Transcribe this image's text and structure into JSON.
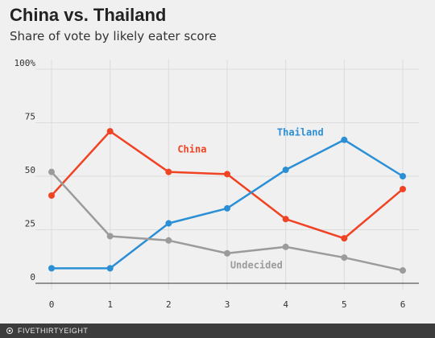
{
  "chart_data": {
    "type": "line",
    "title": "China vs. Thailand",
    "subtitle": "Share of vote by likely eater score",
    "xlabel": "",
    "ylabel": "",
    "x": [
      0,
      1,
      2,
      3,
      4,
      5,
      6
    ],
    "xlim": [
      0,
      6
    ],
    "ylim": [
      0,
      100
    ],
    "y_ticks": [
      0,
      25,
      50,
      75,
      100
    ],
    "y_tick_labels": [
      "0",
      "25",
      "50",
      "75",
      "100%"
    ],
    "grid": true,
    "series": [
      {
        "name": "China",
        "color": "#f04323",
        "values": [
          41,
          71,
          52,
          51,
          30,
          21,
          44
        ]
      },
      {
        "name": "Thailand",
        "color": "#2b8fd6",
        "values": [
          7,
          7,
          28,
          35,
          53,
          67,
          50
        ]
      },
      {
        "name": "Undecided",
        "color": "#9b9b9b",
        "values": [
          52,
          22,
          20,
          14,
          17,
          12,
          6
        ]
      }
    ]
  },
  "footer": {
    "brand": "FIVETHIRTYEIGHT"
  }
}
